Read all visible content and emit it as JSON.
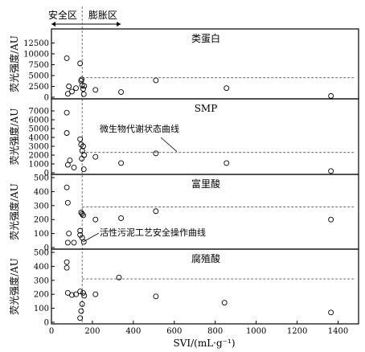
{
  "chart_data": {
    "type": "scatter",
    "xlabel": "SVI/(mL·g⁻¹)",
    "xlim": [
      0,
      1500
    ],
    "x_ticks": [
      0,
      200,
      400,
      600,
      800,
      1000,
      1200,
      1400
    ],
    "zones": {
      "left_label": "安全区",
      "right_label": "膨胀区",
      "boundary_x": 150
    },
    "panels": [
      {
        "title": "类蛋白",
        "ylabel": "荧光强度/AU",
        "ylim": [
          0,
          15000
        ],
        "y_ticks": [
          0,
          2500,
          5000,
          7500,
          10000,
          12500
        ],
        "threshold": 4500,
        "points": [
          [
            75,
            9000
          ],
          [
            80,
            800
          ],
          [
            85,
            2500
          ],
          [
            100,
            1300
          ],
          [
            120,
            2100
          ],
          [
            140,
            7800
          ],
          [
            145,
            3800
          ],
          [
            148,
            4100
          ],
          [
            150,
            2800
          ],
          [
            155,
            1900
          ],
          [
            158,
            700
          ],
          [
            160,
            2600
          ],
          [
            215,
            1700
          ],
          [
            340,
            1200
          ],
          [
            510,
            3900
          ],
          [
            855,
            2100
          ],
          [
            1365,
            300
          ]
        ]
      },
      {
        "title": "SMP",
        "ylabel": "荧光强度/AU",
        "ylim": [
          0,
          8000
        ],
        "y_ticks": [
          0,
          1000,
          2000,
          3000,
          4000,
          5000,
          6000,
          7000
        ],
        "threshold": 2300,
        "annotation": "微生物代谢状态曲线",
        "points": [
          [
            75,
            6800
          ],
          [
            75,
            4500
          ],
          [
            80,
            900
          ],
          [
            90,
            1400
          ],
          [
            110,
            600
          ],
          [
            140,
            3800
          ],
          [
            145,
            3200
          ],
          [
            148,
            1600
          ],
          [
            150,
            2500
          ],
          [
            155,
            3000
          ],
          [
            158,
            400
          ],
          [
            160,
            2000
          ],
          [
            215,
            1800
          ],
          [
            340,
            1100
          ],
          [
            510,
            2200
          ],
          [
            855,
            1100
          ],
          [
            1365,
            200
          ]
        ]
      },
      {
        "title": "富里酸",
        "ylabel": "荧光强度/AU",
        "ylim": [
          0,
          500
        ],
        "y_ticks": [
          0,
          100,
          200,
          300,
          400,
          500
        ],
        "threshold": 290,
        "annotation": "活性污泥工艺安全操作曲线",
        "points": [
          [
            75,
            430
          ],
          [
            80,
            320
          ],
          [
            85,
            100
          ],
          [
            80,
            35
          ],
          [
            110,
            35
          ],
          [
            140,
            90
          ],
          [
            145,
            250
          ],
          [
            150,
            240
          ],
          [
            155,
            230
          ],
          [
            140,
            120
          ],
          [
            150,
            70
          ],
          [
            158,
            40
          ],
          [
            215,
            200
          ],
          [
            340,
            210
          ],
          [
            510,
            260
          ],
          [
            1365,
            200
          ]
        ]
      },
      {
        "title": "腐殖酸",
        "ylabel": "荧光强度/AU",
        "ylim": [
          0,
          500
        ],
        "y_ticks": [
          0,
          100,
          200,
          300,
          400,
          500
        ],
        "threshold": 310,
        "points": [
          [
            75,
            430
          ],
          [
            75,
            390
          ],
          [
            80,
            210
          ],
          [
            100,
            195
          ],
          [
            120,
            200
          ],
          [
            140,
            220
          ],
          [
            145,
            80
          ],
          [
            150,
            130
          ],
          [
            155,
            210
          ],
          [
            160,
            190
          ],
          [
            140,
            30
          ],
          [
            215,
            200
          ],
          [
            330,
            320
          ],
          [
            510,
            185
          ],
          [
            845,
            140
          ],
          [
            1365,
            70
          ]
        ]
      }
    ]
  }
}
